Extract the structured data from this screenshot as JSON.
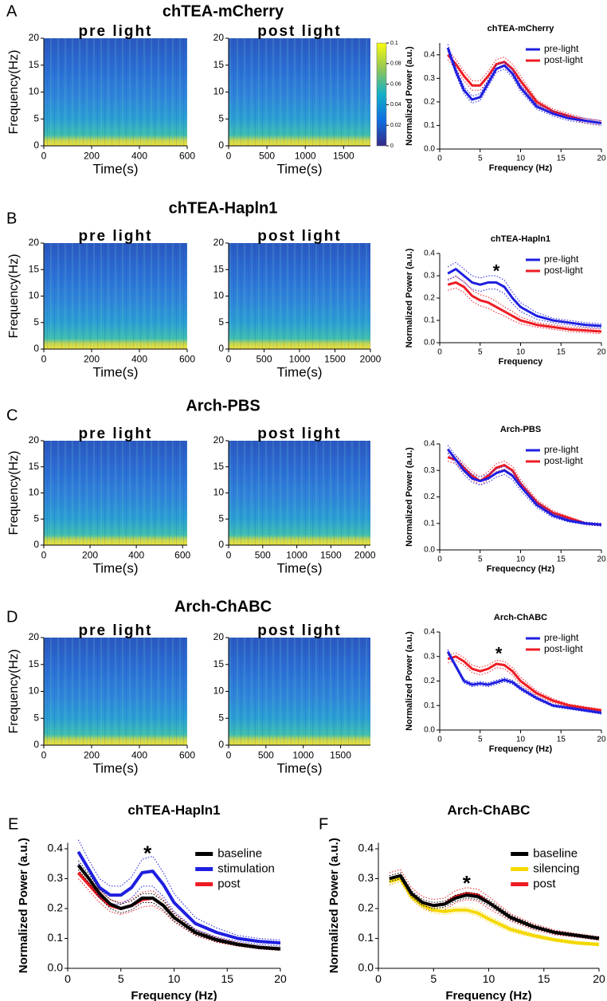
{
  "panels": [
    {
      "label": "A",
      "title": "chTEA-mCherry"
    },
    {
      "label": "B",
      "title": "chTEA-Hapln1"
    },
    {
      "label": "C",
      "title": "Arch-PBS"
    },
    {
      "label": "D",
      "title": "Arch-ChABC"
    },
    {
      "label": "E"
    },
    {
      "label": "F"
    }
  ],
  "chart_data": [
    {
      "type": "spectrogram",
      "title": "pre light",
      "xlabel": "Time(s)",
      "ylabel": "Frequency(Hz)",
      "xlim": [
        0,
        600
      ],
      "xticks": [
        0,
        200,
        400,
        600
      ],
      "ylim": [
        0,
        20
      ],
      "yticks": [
        0,
        5,
        10,
        15,
        20
      ]
    },
    {
      "type": "spectrogram",
      "title": "post light",
      "xlabel": "Time(s)",
      "xlim": [
        0,
        1850
      ],
      "xticks": [
        0,
        500,
        1000,
        1500
      ],
      "ylim": [
        0,
        20
      ],
      "yticks": [
        0,
        5,
        10,
        15,
        20
      ],
      "colorbar": {
        "lim": [
          0,
          0.1
        ],
        "ticks": [
          0,
          0.02,
          0.04,
          0.06,
          0.08,
          0.1
        ]
      }
    },
    {
      "type": "line",
      "title": "chTEA-mCherry",
      "xlabel": "Frequency (Hz)",
      "ylabel": "Normalized Power  (a.u.)",
      "legend": "upper right",
      "x": [
        1,
        2,
        3,
        4,
        5,
        6,
        7,
        8,
        9,
        10,
        12,
        14,
        16,
        18,
        20
      ],
      "xlim": [
        0,
        20
      ],
      "xticks": [
        0,
        5,
        10,
        15,
        20
      ],
      "ylim": [
        0,
        0.45
      ],
      "yticks": [
        {
          "value": 0,
          "label": "0.0"
        },
        0.1,
        0.2,
        0.3,
        0.4
      ],
      "series": [
        {
          "name": "pre-light",
          "color": "#1f1fe0",
          "values": [
            0.43,
            0.33,
            0.25,
            0.21,
            0.22,
            0.28,
            0.34,
            0.355,
            0.32,
            0.26,
            0.18,
            0.15,
            0.13,
            0.12,
            0.11
          ],
          "error": [
            0.015,
            0.015,
            0.015,
            0.015,
            0.015,
            0.015,
            0.015,
            0.015,
            0.015,
            0.015,
            0.01,
            0.01,
            0.01,
            0.01,
            0.01
          ]
        },
        {
          "name": "post-light",
          "color": "#ee1c24",
          "values": [
            0.4,
            0.36,
            0.31,
            0.27,
            0.27,
            0.31,
            0.36,
            0.37,
            0.34,
            0.29,
            0.2,
            0.16,
            0.14,
            0.12,
            0.11
          ],
          "error": [
            0.02,
            0.02,
            0.02,
            0.02,
            0.02,
            0.02,
            0.02,
            0.02,
            0.02,
            0.02,
            0.01,
            0.01,
            0.01,
            0.01,
            0.01
          ]
        }
      ]
    },
    {
      "type": "spectrogram",
      "title": "pre light",
      "xlabel": "Time(s)",
      "ylabel": "Frequency(Hz)",
      "xlim": [
        0,
        600
      ],
      "xticks": [
        0,
        200,
        400,
        600
      ],
      "ylim": [
        0,
        20
      ],
      "yticks": [
        0,
        5,
        10,
        15,
        20
      ]
    },
    {
      "type": "spectrogram",
      "title": "post light",
      "xlabel": "Time(s)",
      "xlim": [
        0,
        2000
      ],
      "xticks": [
        0,
        500,
        1000,
        1500,
        2000
      ],
      "ylim": [
        0,
        20
      ],
      "yticks": [
        0,
        5,
        10,
        15,
        20
      ]
    },
    {
      "type": "line",
      "title": "chTEA-Hapln1",
      "xlabel": "Frequency",
      "ylabel": "Normalized Power  (a.u.)",
      "legend": "upper right",
      "annotations": [
        {
          "text": "*",
          "x": 7,
          "y": 0.33
        }
      ],
      "x": [
        1,
        2,
        3,
        4,
        5,
        6,
        7,
        8,
        9,
        10,
        12,
        14,
        16,
        18,
        20
      ],
      "xlim": [
        0,
        20
      ],
      "xticks": [
        0,
        5,
        10,
        15,
        20
      ],
      "ylim": [
        0,
        0.4
      ],
      "yticks": [
        {
          "value": 0,
          "label": "0.0"
        },
        0.1,
        0.2,
        0.3,
        0.4
      ],
      "series": [
        {
          "name": "pre-light",
          "color": "#1f1fe0",
          "values": [
            0.31,
            0.33,
            0.3,
            0.27,
            0.26,
            0.27,
            0.27,
            0.25,
            0.2,
            0.16,
            0.12,
            0.1,
            0.09,
            0.08,
            0.075
          ],
          "error": [
            0.03,
            0.03,
            0.03,
            0.03,
            0.03,
            0.03,
            0.03,
            0.03,
            0.025,
            0.02,
            0.015,
            0.01,
            0.01,
            0.01,
            0.01
          ]
        },
        {
          "name": "post-light",
          "color": "#ee1c24",
          "values": [
            0.26,
            0.27,
            0.25,
            0.21,
            0.19,
            0.18,
            0.16,
            0.14,
            0.12,
            0.1,
            0.08,
            0.07,
            0.06,
            0.055,
            0.05
          ],
          "error": [
            0.025,
            0.025,
            0.025,
            0.025,
            0.025,
            0.025,
            0.025,
            0.02,
            0.02,
            0.015,
            0.01,
            0.01,
            0.01,
            0.01,
            0.01
          ]
        }
      ]
    },
    {
      "type": "spectrogram",
      "title": "pre light",
      "xlabel": "Time(s)",
      "ylabel": "Frequency(Hz)",
      "xlim": [
        0,
        620
      ],
      "xticks": [
        0,
        200,
        400,
        600
      ],
      "ylim": [
        0,
        20
      ],
      "yticks": [
        0,
        5,
        10,
        15,
        20
      ]
    },
    {
      "type": "spectrogram",
      "title": "post light",
      "xlabel": "Time(s)",
      "xlim": [
        0,
        2080
      ],
      "xticks": [
        0,
        500,
        1000,
        1500,
        2000
      ],
      "ylim": [
        0,
        20
      ],
      "yticks": [
        0,
        5,
        10,
        15,
        20
      ]
    },
    {
      "type": "line",
      "title": "Arch-PBS",
      "xlabel": "Frequecncy (Hz)",
      "ylabel": "Normalized Power  (a.u.)",
      "legend": "upper right",
      "x": [
        1,
        2,
        3,
        4,
        5,
        6,
        7,
        8,
        9,
        10,
        12,
        14,
        16,
        18,
        20
      ],
      "xlim": [
        0,
        20
      ],
      "xticks": [
        0,
        5,
        10,
        15,
        20
      ],
      "ylim": [
        0,
        0.4
      ],
      "yticks": [
        {
          "value": 0,
          "label": "0.0"
        },
        0.1,
        0.2,
        0.3,
        0.4
      ],
      "series": [
        {
          "name": "pre-light",
          "color": "#1f1fe0",
          "values": [
            0.38,
            0.34,
            0.3,
            0.27,
            0.26,
            0.27,
            0.29,
            0.3,
            0.28,
            0.24,
            0.17,
            0.13,
            0.11,
            0.1,
            0.095
          ],
          "error": [
            0.015,
            0.015,
            0.015,
            0.015,
            0.015,
            0.015,
            0.015,
            0.015,
            0.015,
            0.015,
            0.01,
            0.008,
            0.005,
            0.005,
            0.005
          ]
        },
        {
          "name": "post-light",
          "color": "#ee1c24",
          "values": [
            0.35,
            0.34,
            0.31,
            0.28,
            0.26,
            0.28,
            0.31,
            0.32,
            0.3,
            0.25,
            0.18,
            0.14,
            0.12,
            0.1,
            0.095
          ],
          "error": [
            0.015,
            0.015,
            0.015,
            0.015,
            0.015,
            0.015,
            0.015,
            0.015,
            0.015,
            0.015,
            0.01,
            0.008,
            0.005,
            0.005,
            0.005
          ]
        }
      ]
    },
    {
      "type": "spectrogram",
      "title": "pre light",
      "xlabel": "Time(s)",
      "ylabel": "Frequency(Hz)",
      "xlim": [
        0,
        600
      ],
      "xticks": [
        0,
        200,
        400,
        600
      ],
      "ylim": [
        0,
        20
      ],
      "yticks": [
        0,
        5,
        10,
        15,
        20
      ]
    },
    {
      "type": "spectrogram",
      "title": "post light",
      "xlabel": "Time(s)",
      "xlim": [
        0,
        1900
      ],
      "xticks": [
        0,
        500,
        1000,
        1500
      ],
      "ylim": [
        0,
        20
      ],
      "yticks": [
        0,
        5,
        10,
        15,
        20
      ]
    },
    {
      "type": "line",
      "title": "Arch-ChABC",
      "xlabel": "Frequency (Hz)",
      "ylabel": "Normalized Power  (a.u.)",
      "legend": "upper right",
      "annotations": [
        {
          "text": "*",
          "x": 7.3,
          "y": 0.32
        }
      ],
      "x": [
        1,
        2,
        3,
        4,
        5,
        6,
        7,
        8,
        9,
        10,
        12,
        14,
        16,
        18,
        20
      ],
      "xlim": [
        0,
        20
      ],
      "xticks": [
        0,
        5,
        10,
        15,
        20
      ],
      "ylim": [
        0,
        0.4
      ],
      "yticks": [
        {
          "value": 0,
          "label": "0.0"
        },
        0.1,
        0.2,
        0.3,
        0.4
      ],
      "series": [
        {
          "name": "pre-light",
          "color": "#1f1fe0",
          "values": [
            0.32,
            0.26,
            0.2,
            0.185,
            0.19,
            0.185,
            0.195,
            0.205,
            0.195,
            0.17,
            0.13,
            0.1,
            0.09,
            0.08,
            0.07
          ],
          "error": [
            0.008,
            0.008,
            0.008,
            0.008,
            0.008,
            0.008,
            0.008,
            0.008,
            0.008,
            0.008,
            0.006,
            0.005,
            0.005,
            0.005,
            0.005
          ]
        },
        {
          "name": "post-light",
          "color": "#ee1c24",
          "values": [
            0.29,
            0.3,
            0.28,
            0.25,
            0.24,
            0.25,
            0.27,
            0.265,
            0.24,
            0.2,
            0.15,
            0.12,
            0.1,
            0.09,
            0.08
          ],
          "error": [
            0.015,
            0.015,
            0.015,
            0.015,
            0.015,
            0.015,
            0.015,
            0.015,
            0.015,
            0.015,
            0.01,
            0.008,
            0.006,
            0.005,
            0.005
          ]
        }
      ]
    },
    {
      "type": "line",
      "title": "chTEA-Hapln1",
      "xlabel": "Frequency (Hz)",
      "ylabel": "Normalized Power  (a.u.)",
      "legend": "upper right",
      "annotations": [
        {
          "text": "*",
          "x": 7.5,
          "y": 0.39
        }
      ],
      "x": [
        1,
        2,
        3,
        4,
        5,
        6,
        7,
        8,
        9,
        10,
        12,
        14,
        16,
        18,
        20
      ],
      "xlim": [
        0,
        20
      ],
      "xticks": [
        0,
        5,
        10,
        15,
        20
      ],
      "ylim": [
        0,
        0.42
      ],
      "yticks": [
        {
          "value": 0,
          "label": "0.0"
        },
        0.1,
        0.2,
        0.3,
        0.4
      ],
      "series": [
        {
          "name": "baseline",
          "color": "#000000",
          "values": [
            0.345,
            0.3,
            0.25,
            0.215,
            0.2,
            0.21,
            0.235,
            0.235,
            0.21,
            0.17,
            0.12,
            0.095,
            0.08,
            0.07,
            0.065
          ],
          "error": [
            0.015,
            0.015,
            0.015,
            0.015,
            0.015,
            0.015,
            0.015,
            0.015,
            0.015,
            0.012,
            0.008,
            0.006,
            0.005,
            0.005,
            0.005
          ]
        },
        {
          "name": "stimulation",
          "color": "#1f1fe0",
          "values": [
            0.39,
            0.33,
            0.27,
            0.245,
            0.245,
            0.27,
            0.32,
            0.325,
            0.28,
            0.22,
            0.15,
            0.12,
            0.1,
            0.09,
            0.085
          ],
          "error": [
            0.04,
            0.03,
            0.03,
            0.03,
            0.03,
            0.035,
            0.045,
            0.05,
            0.04,
            0.03,
            0.02,
            0.015,
            0.01,
            0.01,
            0.01
          ]
        },
        {
          "name": "post",
          "color": "#ee1c24",
          "values": [
            0.32,
            0.28,
            0.24,
            0.21,
            0.2,
            0.21,
            0.23,
            0.235,
            0.21,
            0.17,
            0.12,
            0.095,
            0.08,
            0.07,
            0.065
          ],
          "error": [
            0.02,
            0.02,
            0.02,
            0.02,
            0.02,
            0.02,
            0.025,
            0.025,
            0.02,
            0.015,
            0.01,
            0.008,
            0.006,
            0.005,
            0.005
          ]
        }
      ]
    },
    {
      "type": "line",
      "title": "Arch-ChABC",
      "xlabel": "Frequency (Hz)",
      "ylabel": "Normalized Power  (a.u.)",
      "legend": "upper right",
      "annotations": [
        {
          "text": "*",
          "x": 8,
          "y": 0.29
        }
      ],
      "x": [
        1,
        2,
        3,
        4,
        5,
        6,
        7,
        8,
        9,
        10,
        12,
        14,
        16,
        18,
        20
      ],
      "xlim": [
        0,
        20
      ],
      "xticks": [
        0,
        5,
        10,
        15,
        20
      ],
      "ylim": [
        0,
        0.42
      ],
      "yticks": [
        {
          "value": 0,
          "label": "0.0"
        },
        0.1,
        0.2,
        0.3,
        0.4
      ],
      "series": [
        {
          "name": "baseline",
          "color": "#000000",
          "values": [
            0.3,
            0.31,
            0.25,
            0.22,
            0.21,
            0.215,
            0.235,
            0.245,
            0.24,
            0.22,
            0.17,
            0.14,
            0.12,
            0.11,
            0.1
          ],
          "error": [
            0.01,
            0.01,
            0.01,
            0.01,
            0.01,
            0.01,
            0.01,
            0.01,
            0.01,
            0.01,
            0.008,
            0.006,
            0.005,
            0.005,
            0.005
          ]
        },
        {
          "name": "silencing",
          "color": "#f5d800",
          "values": [
            0.29,
            0.3,
            0.24,
            0.21,
            0.195,
            0.19,
            0.195,
            0.195,
            0.185,
            0.165,
            0.13,
            0.11,
            0.095,
            0.085,
            0.08
          ],
          "error": [
            0.01,
            0.01,
            0.01,
            0.01,
            0.01,
            0.01,
            0.01,
            0.01,
            0.01,
            0.01,
            0.008,
            0.006,
            0.005,
            0.005,
            0.005
          ]
        },
        {
          "name": "post",
          "color": "#ee1c24",
          "values": [
            0.3,
            0.31,
            0.25,
            0.22,
            0.21,
            0.215,
            0.24,
            0.25,
            0.245,
            0.22,
            0.17,
            0.14,
            0.12,
            0.11,
            0.1
          ],
          "error": [
            0.02,
            0.02,
            0.02,
            0.02,
            0.02,
            0.02,
            0.02,
            0.02,
            0.02,
            0.02,
            0.012,
            0.01,
            0.008,
            0.006,
            0.006
          ]
        }
      ]
    }
  ]
}
